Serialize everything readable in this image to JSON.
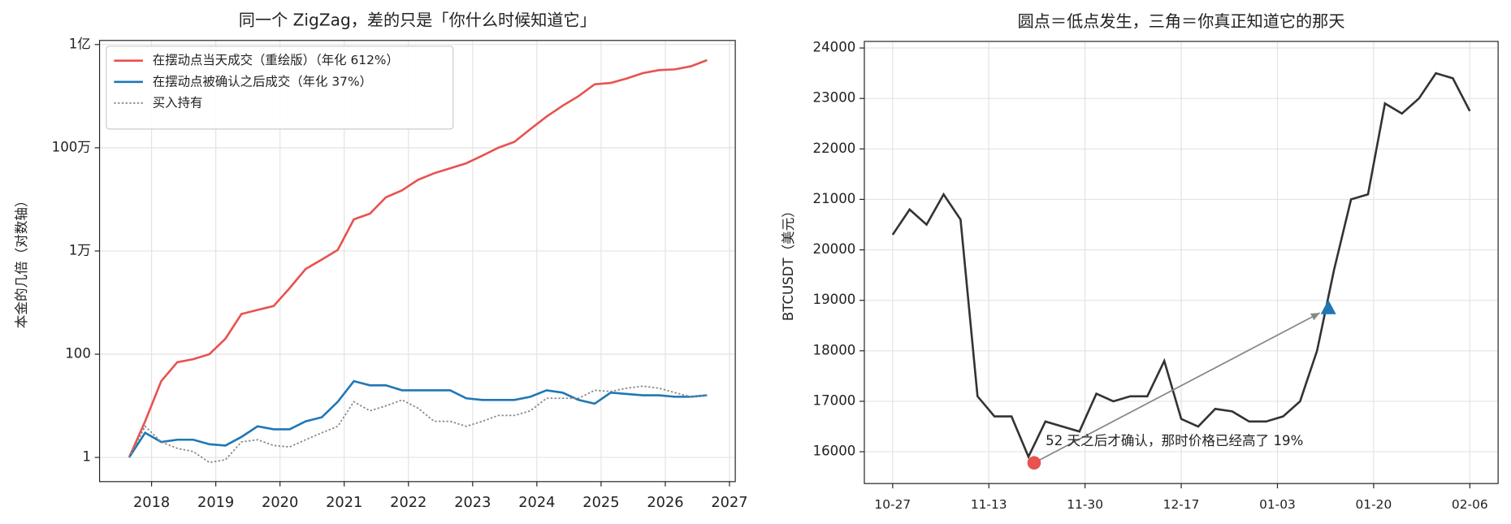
{
  "chart_data": [
    {
      "type": "line",
      "log_y": true,
      "grid": true,
      "legend": "upper-left",
      "title": "同一个 ZigZag，差的只是「你什么时候知道它」",
      "y_label": "本金的几倍（对数轴）",
      "xlim": [
        2017.19,
        2027.09
      ],
      "xticks": [
        2018,
        2019,
        2020,
        2021,
        2022,
        2023,
        2024,
        2025,
        2026,
        2027
      ],
      "ylim": [
        0.34,
        120000000
      ],
      "yticks": [
        1,
        100,
        {
          "value": 10000,
          "label": "1万"
        },
        {
          "value": 1000000,
          "label": "100万"
        },
        {
          "value": 100000000,
          "label": "1亿"
        }
      ],
      "x": [
        2017.65,
        2017.9,
        2018.15,
        2018.4,
        2018.65,
        2018.9,
        2019.15,
        2019.4,
        2019.65,
        2019.9,
        2020.15,
        2020.4,
        2020.65,
        2020.9,
        2021.15,
        2021.4,
        2021.65,
        2021.9,
        2022.15,
        2022.4,
        2022.65,
        2022.9,
        2023.15,
        2023.4,
        2023.65,
        2023.9,
        2024.15,
        2024.4,
        2024.65,
        2024.9,
        2025.15,
        2025.4,
        2025.65,
        2025.9,
        2026.15,
        2026.4,
        2026.65
      ],
      "series": [
        {
          "name": "在摆动点当天成交（重绘版）（年化 612%）",
          "color": "#e8524f",
          "style": "solid",
          "values": [
            1,
            5,
            30,
            70,
            80,
            100,
            200,
            600,
            720,
            860,
            1900,
            4500,
            6800,
            10500,
            41000,
            53000,
            110000,
            150000,
            240000,
            320000,
            400000,
            500000,
            700000,
            1000000,
            1300000,
            2300000,
            4000000,
            6500000,
            10000000,
            17000000,
            18000000,
            22000000,
            28000000,
            32000000,
            33000000,
            38000000,
            50000000
          ]
        },
        {
          "name": "在摆动点被确认之后成交（年化 37%）",
          "color": "#1f77b4",
          "style": "solid",
          "values": [
            1,
            3,
            2,
            2.2,
            2.2,
            1.8,
            1.7,
            2.5,
            4,
            3.5,
            3.5,
            5,
            6,
            12,
            30,
            25,
            25,
            20,
            20,
            20,
            20,
            14,
            13,
            13,
            13,
            15,
            20,
            18,
            13,
            11,
            18,
            17,
            16,
            16,
            15,
            15,
            16
          ]
        },
        {
          "name": "买入持有",
          "color": "#888888",
          "style": "dotted",
          "values": [
            1,
            4,
            2,
            1.5,
            1.3,
            0.8,
            0.9,
            2,
            2.2,
            1.7,
            1.6,
            2.2,
            3,
            4,
            12,
            8,
            10,
            13,
            9,
            5,
            5,
            4,
            5,
            6.5,
            6.5,
            8,
            14,
            14,
            14,
            20,
            19,
            22,
            24,
            22,
            18,
            15,
            16
          ]
        }
      ]
    },
    {
      "type": "line",
      "grid": true,
      "title": "圆点＝低点发生，三角＝你真正知道它的那天",
      "y_label": "BTCUSDT（美元）",
      "xlim": [
        "10-22",
        "02-11"
      ],
      "xticks": [
        "10-27",
        "11-13",
        "11-30",
        "12-17",
        "01-03",
        "01-20",
        "02-06"
      ],
      "ylim": [
        15370,
        24130
      ],
      "yticks": [
        16000,
        17000,
        18000,
        19000,
        20000,
        21000,
        22000,
        23000,
        24000
      ],
      "x": [
        "10-27",
        "10-30",
        "11-02",
        "11-05",
        "11-08",
        "11-11",
        "11-14",
        "11-17",
        "11-20",
        "11-23",
        "11-26",
        "11-29",
        "12-02",
        "12-05",
        "12-08",
        "12-11",
        "12-14",
        "12-17",
        "12-20",
        "12-23",
        "12-26",
        "12-29",
        "01-01",
        "01-04",
        "01-07",
        "01-10",
        "01-13",
        "01-16",
        "01-19",
        "01-22",
        "01-25",
        "01-28",
        "01-31",
        "02-03",
        "02-06"
      ],
      "series": [
        {
          "color": "#333333",
          "style": "solid",
          "values": [
            20300,
            20800,
            20500,
            21100,
            20600,
            17100,
            16700,
            16700,
            15900,
            16600,
            16500,
            16400,
            17150,
            17000,
            17100,
            17100,
            17800,
            16650,
            16500,
            16850,
            16800,
            16600,
            16600,
            16700,
            17000,
            18000,
            19600,
            21000,
            21100,
            22900,
            22700,
            23000,
            23500,
            23400,
            22750
          ]
        }
      ],
      "points": [
        {
          "x": "11-21",
          "y": 15780,
          "color": "#e8524f",
          "shape": "circle"
        },
        {
          "x": "01-12",
          "y": 18840,
          "color": "#1f77b4",
          "shape": "triangle"
        }
      ],
      "annotation": "52 天之后才确认，那时价格已经高了 19%"
    }
  ]
}
